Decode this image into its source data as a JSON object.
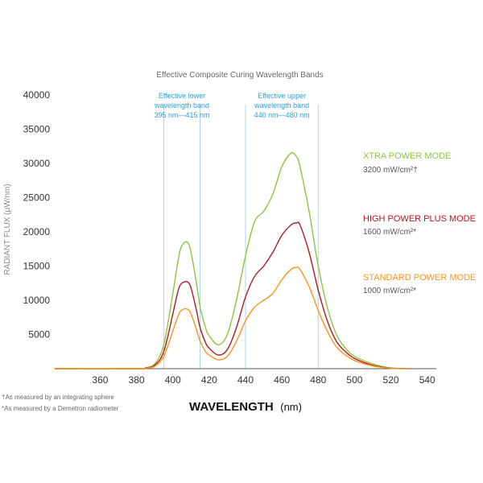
{
  "chart_data": {
    "type": "line",
    "title": "Effective Composite Curing Wavelength Bands",
    "xlabel": "WAVELENGTH",
    "xlabel_unit": "(nm)",
    "ylabel": "RADIANT FLUX (μW/nm)",
    "xlim": [
      335,
      545
    ],
    "ylim": [
      0,
      40000
    ],
    "x_ticks": [
      360,
      380,
      400,
      420,
      440,
      460,
      480,
      500,
      520,
      540
    ],
    "y_ticks": [
      5000,
      10000,
      15000,
      20000,
      25000,
      30000,
      35000,
      40000
    ],
    "grid": false,
    "bands": [
      {
        "range": [
          395,
          415
        ],
        "lines": [
          "Effective lower",
          "wavelength band",
          "395 nm—415 nm"
        ]
      },
      {
        "range": [
          440,
          480
        ],
        "lines": [
          "Effective upper",
          "wavelength band",
          "440 nm—480 nm"
        ]
      }
    ],
    "band_color": "#a9d4ee",
    "x": [
      335,
      380,
      385,
      390,
      395,
      400,
      403,
      405,
      408,
      410,
      413,
      415,
      418,
      420,
      425,
      430,
      435,
      440,
      445,
      450,
      455,
      460,
      465,
      468,
      470,
      475,
      480,
      485,
      490,
      495,
      500,
      510,
      520,
      530
    ],
    "series": [
      {
        "name": "XTRA POWER MODE",
        "detail": "3200 mW/cm²†",
        "color": "#8dc63f",
        "values": [
          0,
          0,
          150,
          700,
          3500,
          11000,
          16000,
          18000,
          18500,
          17000,
          12500,
          9000,
          6000,
          4800,
          3500,
          5000,
          10000,
          16500,
          21500,
          23000,
          25500,
          29500,
          31500,
          31000,
          29500,
          23000,
          15000,
          9000,
          5000,
          3000,
          1800,
          700,
          100,
          0
        ]
      },
      {
        "name": "HIGH POWER PLUS MODE",
        "detail": "1600 mW/cm²*",
        "color": "#b1191f",
        "values": [
          0,
          0,
          100,
          500,
          2500,
          8000,
          11500,
          12500,
          12700,
          11800,
          8500,
          6000,
          3800,
          3000,
          2000,
          2800,
          6000,
          10500,
          13500,
          15000,
          17000,
          19500,
          21000,
          21300,
          21000,
          17000,
          11500,
          7000,
          4000,
          2500,
          1500,
          500,
          80,
          0
        ]
      },
      {
        "name": "STANDARD POWER MODE",
        "detail": "1000 mW/cm²*",
        "color": "#f7941d",
        "values": [
          0,
          0,
          80,
          350,
          1800,
          5500,
          7800,
          8600,
          8700,
          8000,
          5700,
          4000,
          2500,
          2000,
          1300,
          1800,
          4000,
          7000,
          9000,
          10000,
          11000,
          13000,
          14500,
          14800,
          14500,
          12000,
          8500,
          5500,
          3200,
          2000,
          1200,
          400,
          60,
          0
        ]
      }
    ],
    "legend_placement": "right",
    "footnotes": [
      "†As measured by an integrating sphere",
      "*As measured by a Demetron radiometer"
    ]
  }
}
